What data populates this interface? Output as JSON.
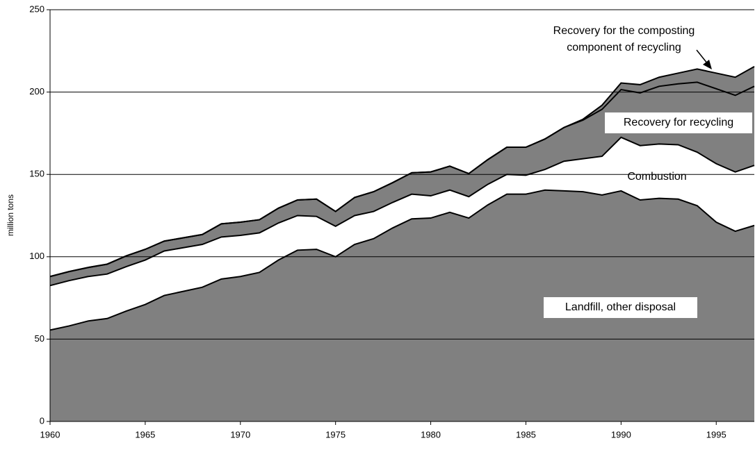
{
  "chart_data": {
    "type": "stacked_area",
    "ylabel": "million tons",
    "x": [
      1960,
      1961,
      1962,
      1963,
      1964,
      1965,
      1966,
      1967,
      1968,
      1969,
      1970,
      1971,
      1972,
      1973,
      1974,
      1975,
      1976,
      1977,
      1978,
      1979,
      1980,
      1981,
      1982,
      1983,
      1984,
      1985,
      1986,
      1987,
      1988,
      1989,
      1990,
      1991,
      1992,
      1993,
      1994,
      1995,
      1996,
      1997
    ],
    "series": [
      {
        "name": "Landfill, other disposal",
        "color": "#808080",
        "values": [
          55.5,
          58,
          61,
          62.5,
          67,
          71,
          76.5,
          79,
          81.5,
          86.5,
          88,
          90.5,
          98,
          104,
          104.5,
          100,
          107.5,
          111,
          117.5,
          123,
          123.5,
          127,
          123.5,
          131.5,
          138,
          138,
          140.5,
          140,
          139.5,
          137.5,
          140,
          134.5,
          135.5,
          135,
          131,
          121,
          115.5,
          119
        ]
      },
      {
        "name": "Combustion",
        "color": "#ffffff",
        "values": [
          27,
          27.5,
          27,
          27,
          27,
          27,
          27,
          26.5,
          26,
          25.5,
          25,
          24,
          22.5,
          21,
          20,
          18.5,
          17.5,
          16.5,
          15.5,
          15,
          13.5,
          13.5,
          13,
          12.5,
          12,
          11.5,
          12.5,
          18,
          20,
          23.5,
          32.5,
          33,
          33,
          33,
          32.5,
          35.5,
          36,
          36.5
        ]
      },
      {
        "name": "Recovery for recycling",
        "color": "#808080",
        "values": [
          5.5,
          5.5,
          5.5,
          6,
          6.5,
          6.5,
          6,
          6,
          6,
          8,
          8,
          8,
          9,
          9.5,
          10.5,
          9,
          11,
          12,
          12,
          13,
          14.5,
          14.5,
          14,
          15,
          16.5,
          17,
          18.5,
          20.5,
          23.5,
          28.5,
          29,
          32,
          35,
          37,
          42.5,
          45.5,
          46.5,
          48
        ]
      },
      {
        "name": "Recovery for the composting component of recycling",
        "color": "#808080",
        "values": [
          0,
          0,
          0,
          0,
          0,
          0,
          0,
          0,
          0,
          0,
          0,
          0,
          0,
          0,
          0,
          0,
          0,
          0,
          0,
          0,
          0,
          0,
          0,
          0,
          0,
          0,
          0,
          0,
          0.5,
          2.5,
          4,
          5,
          5.5,
          6.5,
          8,
          9.5,
          11,
          12
        ]
      }
    ],
    "xlim": [
      1960,
      1997
    ],
    "xticks": [
      1960,
      1965,
      1970,
      1975,
      1980,
      1985,
      1990,
      1995
    ],
    "ylim": [
      0,
      250
    ],
    "yticks": [
      0,
      50,
      100,
      150,
      200,
      250
    ],
    "grid": true
  }
}
